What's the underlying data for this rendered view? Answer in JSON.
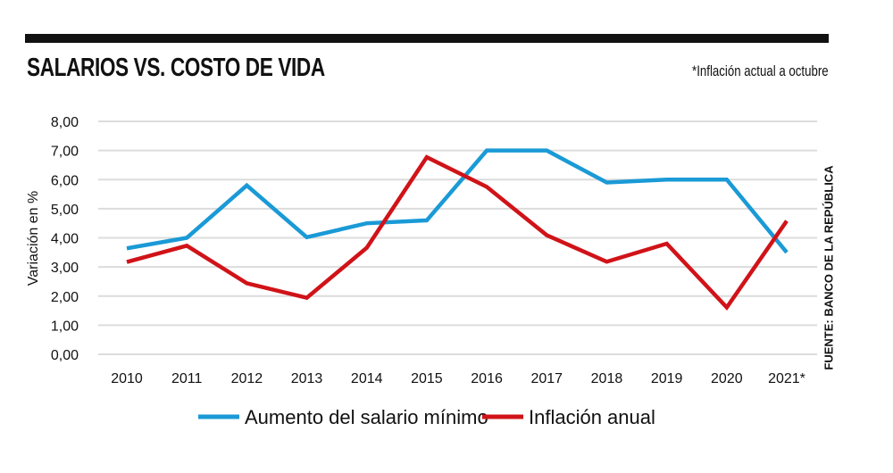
{
  "header": {
    "title": "SALARIOS VS. COSTO DE VIDA",
    "note": "*Inflación actual a octubre",
    "source": "FUENTE: BANCO DE LA REPÚBLICA"
  },
  "chart_data": {
    "type": "line",
    "title": "SALARIOS VS. COSTO DE VIDA",
    "ylabel": "Variación en %",
    "xlabel": "",
    "categories": [
      "2010",
      "2011",
      "2012",
      "2013",
      "2014",
      "2015",
      "2016",
      "2017",
      "2018",
      "2019",
      "2020",
      "2021*"
    ],
    "yticks": [
      "0,00",
      "1,00",
      "2,00",
      "3,00",
      "4,00",
      "5,00",
      "6,00",
      "7,00",
      "8,00"
    ],
    "ylim": [
      0,
      8
    ],
    "grid": true,
    "legend": "bottom",
    "series": [
      {
        "name": "Aumento del salario mínimo",
        "color": "#1a9ad6",
        "values": [
          3.64,
          4.0,
          5.8,
          4.02,
          4.5,
          4.6,
          7.0,
          7.0,
          5.9,
          6.0,
          6.0,
          3.5
        ]
      },
      {
        "name": "Inflación anual",
        "color": "#d01318",
        "values": [
          3.17,
          3.73,
          2.44,
          1.94,
          3.66,
          6.77,
          5.75,
          4.09,
          3.18,
          3.8,
          1.61,
          4.58
        ]
      }
    ]
  }
}
